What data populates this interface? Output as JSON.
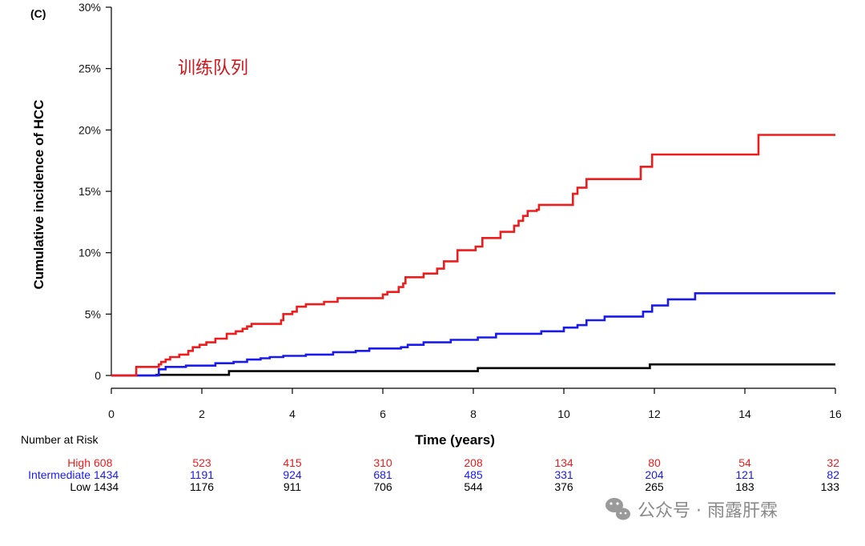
{
  "panel_label": "(C)",
  "overlay_title": "训练队列",
  "watermark": "公众号 · 雨露肝霖",
  "colors": {
    "High": "#ee1c1c",
    "Intermediate": "#1a1aee",
    "Low": "#000000",
    "title": "#d0161c"
  },
  "chart_data": {
    "type": "line",
    "step": true,
    "title": "",
    "xlabel": "Time (years)",
    "ylabel": "Cumulative incidence of HCC",
    "xlim": [
      0,
      16
    ],
    "ylim": [
      0,
      30
    ],
    "x_ticks": [
      0,
      2,
      4,
      6,
      8,
      10,
      12,
      14,
      16
    ],
    "y_ticks": [
      0,
      5,
      10,
      15,
      20,
      25,
      30
    ],
    "y_tick_labels": [
      "0",
      "5%",
      "10%",
      "15%",
      "20%",
      "25%",
      "30%"
    ],
    "grid": false,
    "series": [
      {
        "name": "High",
        "x": [
          0,
          0.5,
          0.55,
          1.0,
          1.05,
          1.1,
          1.2,
          1.3,
          1.5,
          1.6,
          1.7,
          1.8,
          1.95,
          2.1,
          2.3,
          2.55,
          2.75,
          2.9,
          3.0,
          3.1,
          3.75,
          3.8,
          4.0,
          4.1,
          4.3,
          4.7,
          5.0,
          5.4,
          6.0,
          6.1,
          6.35,
          6.45,
          6.5,
          6.9,
          7.2,
          7.35,
          7.65,
          8.05,
          8.2,
          8.6,
          8.9,
          9.0,
          9.1,
          9.2,
          9.4,
          9.45,
          10.2,
          10.3,
          10.5,
          11.0,
          11.7,
          11.95,
          14.3,
          16.0
        ],
        "y": [
          0,
          0,
          0.7,
          0.7,
          0.9,
          1.1,
          1.3,
          1.5,
          1.7,
          1.7,
          2.0,
          2.3,
          2.5,
          2.7,
          3.0,
          3.4,
          3.6,
          3.8,
          4.0,
          4.2,
          4.5,
          5.0,
          5.2,
          5.6,
          5.8,
          6.0,
          6.3,
          6.3,
          6.6,
          6.8,
          7.2,
          7.5,
          8.0,
          8.3,
          8.7,
          9.3,
          10.2,
          10.5,
          11.2,
          11.7,
          12.2,
          12.6,
          13.0,
          13.4,
          13.5,
          13.9,
          14.8,
          15.3,
          16.0,
          16.0,
          17.0,
          18.0,
          19.6,
          19.6
        ]
      },
      {
        "name": "Intermediate",
        "x": [
          0,
          0.95,
          1.05,
          1.2,
          1.65,
          2.3,
          2.7,
          3.0,
          3.3,
          3.5,
          3.8,
          4.3,
          4.9,
          5.4,
          5.7,
          6.4,
          6.55,
          6.9,
          7.5,
          8.1,
          8.5,
          9.5,
          10.0,
          10.3,
          10.5,
          10.9,
          11.2,
          11.75,
          11.95,
          12.3,
          12.9,
          16.0
        ],
        "y": [
          0,
          0,
          0.5,
          0.7,
          0.8,
          1.0,
          1.1,
          1.3,
          1.4,
          1.5,
          1.6,
          1.7,
          1.9,
          2.0,
          2.2,
          2.3,
          2.5,
          2.7,
          2.9,
          3.1,
          3.4,
          3.6,
          3.9,
          4.1,
          4.5,
          4.8,
          4.8,
          5.2,
          5.7,
          6.2,
          6.7,
          6.7
        ]
      },
      {
        "name": "Low",
        "x": [
          0,
          1.0,
          2.6,
          8.1,
          11.9,
          16.0
        ],
        "y": [
          0,
          0.05,
          0.35,
          0.6,
          0.9,
          0.9
        ]
      }
    ],
    "risk_table": {
      "title": "Number at Risk",
      "times": [
        0,
        2,
        4,
        6,
        8,
        10,
        12,
        14,
        16
      ],
      "rows": [
        {
          "label": "High",
          "values": [
            "608",
            "523",
            "415",
            "310",
            "208",
            "134",
            "80",
            "54",
            "32"
          ]
        },
        {
          "label": "Intermediate",
          "values": [
            "1434",
            "1191",
            "924",
            "681",
            "485",
            "331",
            "204",
            "121",
            "82"
          ]
        },
        {
          "label": "Low",
          "values": [
            "1434",
            "1176",
            "911",
            "706",
            "544",
            "376",
            "265",
            "183",
            "133"
          ]
        }
      ]
    }
  }
}
